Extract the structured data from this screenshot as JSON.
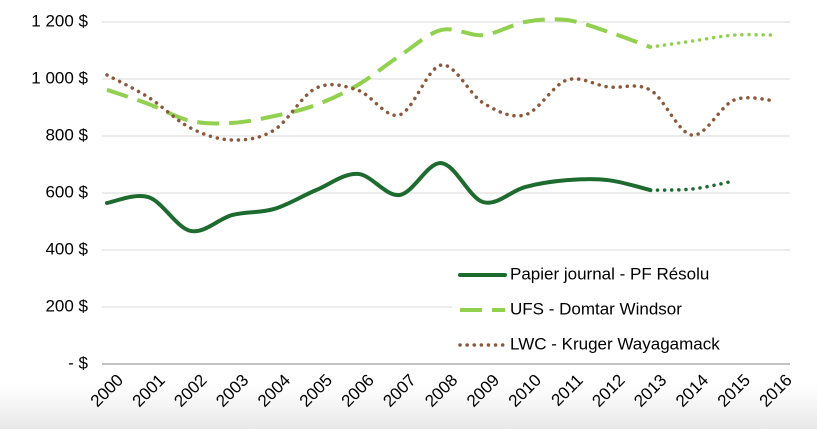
{
  "chart_data": {
    "type": "line",
    "categories": [
      "2000",
      "2001",
      "2002",
      "2003",
      "2004",
      "2005",
      "2006",
      "2007",
      "2008",
      "2009",
      "2010",
      "2011",
      "2012",
      "2013",
      "2014",
      "2015",
      "2016"
    ],
    "series": [
      {
        "name": "Papier journal - PF Résolu",
        "color": "#1e6b30",
        "dash": "solid",
        "forecast_from": 13,
        "values": [
          565,
          585,
          467,
          523,
          544,
          610,
          667,
          593,
          705,
          568,
          621,
          645,
          645,
          610,
          614,
          642,
          null
        ]
      },
      {
        "name": "UFS - Domtar Windsor",
        "color": "#92d050",
        "dash": "dash",
        "forecast_from": 13,
        "values": [
          962,
          912,
          853,
          846,
          870,
          909,
          979,
          1081,
          1172,
          1154,
          1200,
          1207,
          1165,
          1112,
          1133,
          1154,
          1154
        ]
      },
      {
        "name": "LWC - Kruger Wayagamack",
        "color": "#8b5a3c",
        "dash": "dot",
        "values": [
          1014,
          935,
          828,
          786,
          821,
          968,
          961,
          874,
          1049,
          916,
          874,
          996,
          972,
          961,
          803,
          926,
          923
        ]
      }
    ],
    "ylim": [
      0,
      1200
    ],
    "yticks": [
      {
        "value": 0,
        "label": "- $"
      },
      {
        "value": 200,
        "label": "200 $"
      },
      {
        "value": 400,
        "label": "400 $"
      },
      {
        "value": 600,
        "label": "600 $"
      },
      {
        "value": 800,
        "label": "800 $"
      },
      {
        "value": 1000,
        "label": "1 000 $"
      },
      {
        "value": 1200,
        "label": "1 200 $"
      }
    ],
    "grid": true,
    "legend": "lower right"
  }
}
